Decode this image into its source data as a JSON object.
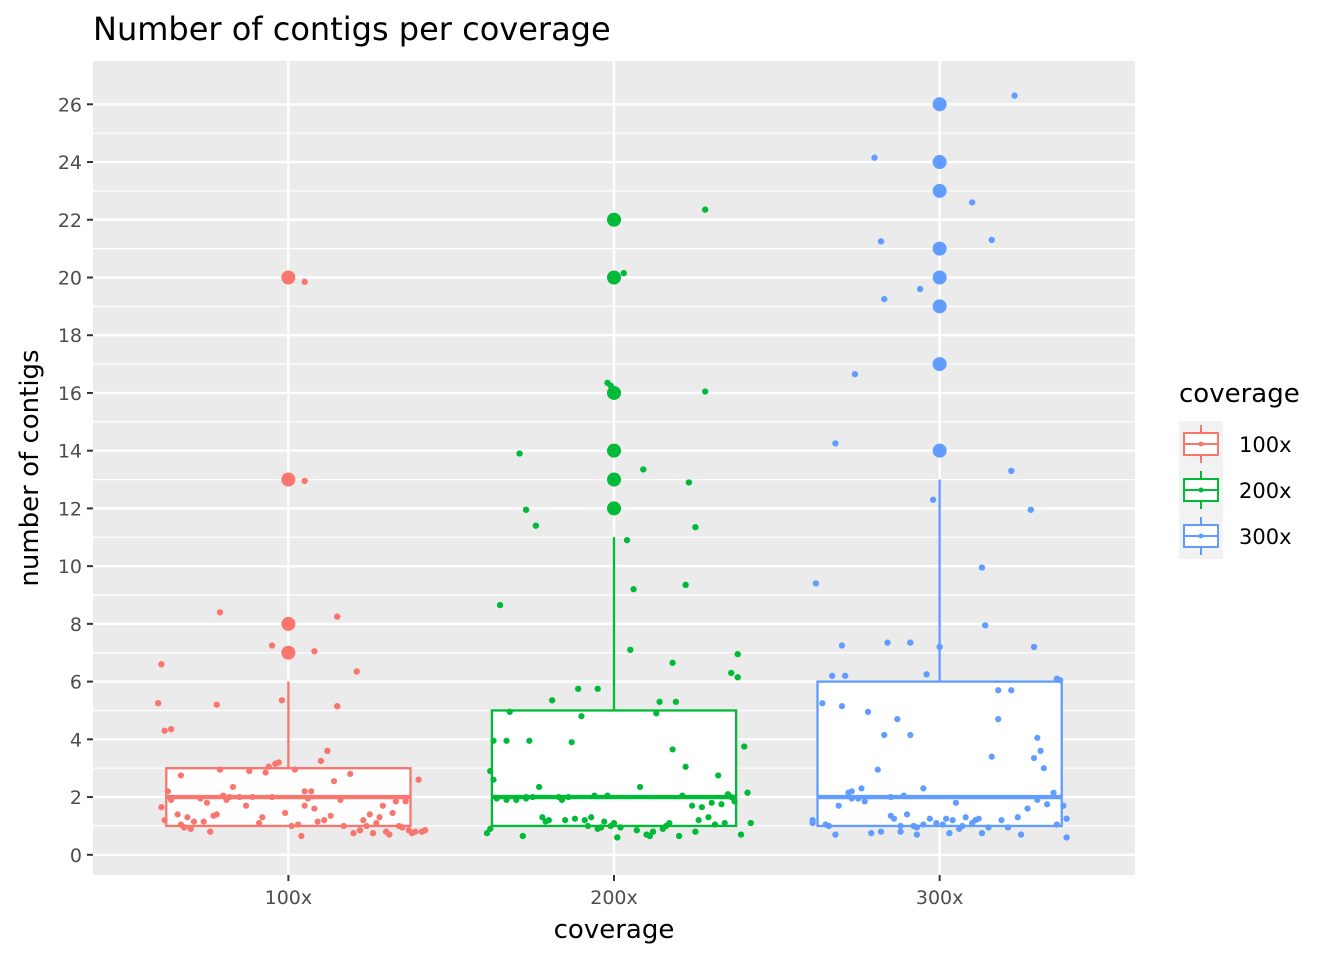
{
  "chart_data": {
    "type": "boxplot",
    "title": "Number of contigs per coverage",
    "xlabel": "coverage",
    "ylabel": "number of contigs",
    "ylim": [
      -0.7,
      27.5
    ],
    "yticks": [
      0,
      2,
      4,
      6,
      8,
      10,
      12,
      14,
      16,
      18,
      20,
      22,
      24,
      26
    ],
    "grid": true,
    "background": "#EBEBEB",
    "legend": {
      "title": "coverage",
      "position": "right",
      "entries": [
        "100x",
        "200x",
        "300x"
      ]
    },
    "categories": [
      "100x",
      "200x",
      "300x"
    ],
    "series": [
      {
        "name": "100x",
        "color": "#F8766D",
        "box": {
          "min": 1,
          "q1": 1,
          "median": 2,
          "q3": 3,
          "whisker_high": 6
        },
        "outliers": [
          7,
          8,
          13,
          20
        ],
        "jitter": [
          [
            -0.39,
            6.6
          ],
          [
            -0.4,
            5.25
          ],
          [
            -0.38,
            4.3
          ],
          [
            -0.36,
            4.35
          ],
          [
            -0.22,
            5.2
          ],
          [
            -0.21,
            8.4
          ],
          [
            -0.39,
            1.65
          ],
          [
            -0.38,
            1.2
          ],
          [
            -0.37,
            2.2
          ],
          [
            -0.36,
            1.9
          ],
          [
            -0.34,
            1.4
          ],
          [
            -0.33,
            1.05
          ],
          [
            -0.33,
            2.75
          ],
          [
            -0.32,
            0.95
          ],
          [
            -0.31,
            1.3
          ],
          [
            -0.3,
            0.9
          ],
          [
            -0.29,
            1.15
          ],
          [
            -0.27,
            1.95
          ],
          [
            -0.26,
            1.15
          ],
          [
            -0.25,
            1.8
          ],
          [
            -0.24,
            0.8
          ],
          [
            -0.23,
            1.35
          ],
          [
            -0.22,
            1.4
          ],
          [
            -0.21,
            2.95
          ],
          [
            -0.2,
            2.05
          ],
          [
            -0.19,
            1.9
          ],
          [
            -0.18,
            2.0
          ],
          [
            -0.17,
            2.35
          ],
          [
            -0.15,
            2.0
          ],
          [
            -0.13,
            1.7
          ],
          [
            -0.12,
            2.9
          ],
          [
            -0.11,
            2.0
          ],
          [
            -0.09,
            1.1
          ],
          [
            -0.08,
            1.3
          ],
          [
            -0.07,
            2.85
          ],
          [
            -0.06,
            3.05
          ],
          [
            -0.05,
            2.0
          ],
          [
            -0.04,
            3.15
          ],
          [
            -0.03,
            3.2
          ],
          [
            -0.02,
            5.35
          ],
          [
            -0.01,
            1.45
          ],
          [
            0.01,
            1.0
          ],
          [
            0.02,
            2.95
          ],
          [
            0.03,
            1.05
          ],
          [
            0.04,
            0.65
          ],
          [
            0.05,
            2.2
          ],
          [
            0.06,
            1.95
          ],
          [
            0.07,
            2.2
          ],
          [
            0.08,
            1.6
          ],
          [
            0.09,
            1.15
          ],
          [
            0.1,
            3.25
          ],
          [
            0.11,
            1.2
          ],
          [
            0.12,
            3.6
          ],
          [
            0.13,
            1.35
          ],
          [
            0.14,
            2.55
          ],
          [
            0.15,
            5.15
          ],
          [
            0.16,
            1.9
          ],
          [
            0.17,
            1.0
          ],
          [
            0.19,
            2.8
          ],
          [
            0.2,
            0.75
          ],
          [
            0.21,
            6.35
          ],
          [
            0.22,
            0.85
          ],
          [
            0.23,
            1.2
          ],
          [
            0.24,
            1.0
          ],
          [
            0.25,
            1.4
          ],
          [
            0.26,
            0.75
          ],
          [
            0.27,
            1.1
          ],
          [
            0.28,
            1.3
          ],
          [
            0.29,
            1.7
          ],
          [
            0.3,
            0.8
          ],
          [
            0.31,
            0.7
          ],
          [
            0.32,
            1.45
          ],
          [
            0.33,
            1.85
          ],
          [
            0.34,
            1.0
          ],
          [
            0.35,
            0.95
          ],
          [
            0.36,
            1.85
          ],
          [
            0.37,
            0.85
          ],
          [
            0.38,
            0.75
          ],
          [
            0.39,
            0.8
          ],
          [
            0.4,
            2.6
          ],
          [
            0.41,
            0.8
          ],
          [
            0.42,
            0.85
          ],
          [
            0.05,
            19.85
          ],
          [
            0.05,
            12.95
          ],
          [
            0.08,
            7.05
          ],
          [
            -0.05,
            7.25
          ],
          [
            0.15,
            8.25
          ],
          [
            0.05,
            1.7
          ]
        ]
      },
      {
        "name": "200x",
        "color": "#00BA38",
        "box": {
          "min": 1,
          "q1": 1,
          "median": 2,
          "q3": 5,
          "whisker_high": 11
        },
        "outliers": [
          12,
          13,
          14,
          16,
          20,
          22
        ],
        "jitter": [
          [
            -0.39,
            0.75
          ],
          [
            -0.38,
            0.9
          ],
          [
            -0.38,
            2.9
          ],
          [
            -0.37,
            2.6
          ],
          [
            -0.37,
            3.95
          ],
          [
            -0.36,
            1.95
          ],
          [
            -0.35,
            8.65
          ],
          [
            -0.33,
            1.9
          ],
          [
            -0.33,
            3.95
          ],
          [
            -0.32,
            4.95
          ],
          [
            -0.3,
            1.9
          ],
          [
            -0.29,
            13.9
          ],
          [
            -0.28,
            0.65
          ],
          [
            -0.27,
            1.95
          ],
          [
            -0.27,
            2.0
          ],
          [
            -0.27,
            11.95
          ],
          [
            -0.26,
            3.95
          ],
          [
            -0.25,
            2.0
          ],
          [
            -0.24,
            11.4
          ],
          [
            -0.23,
            2.35
          ],
          [
            -0.22,
            1.3
          ],
          [
            -0.21,
            1.15
          ],
          [
            -0.2,
            1.2
          ],
          [
            -0.19,
            5.35
          ],
          [
            -0.17,
            2.0
          ],
          [
            -0.16,
            1.9
          ],
          [
            -0.15,
            1.2
          ],
          [
            -0.14,
            2.0
          ],
          [
            -0.13,
            3.9
          ],
          [
            -0.12,
            1.25
          ],
          [
            -0.11,
            5.75
          ],
          [
            -0.1,
            4.8
          ],
          [
            -0.09,
            1.2
          ],
          [
            -0.08,
            1.0
          ],
          [
            -0.07,
            1.3
          ],
          [
            -0.06,
            2.05
          ],
          [
            -0.05,
            0.9
          ],
          [
            -0.05,
            5.75
          ],
          [
            -0.04,
            0.95
          ],
          [
            -0.03,
            1.15
          ],
          [
            -0.02,
            2.05
          ],
          [
            -0.01,
            1.0
          ],
          [
            0.0,
            1.1
          ],
          [
            0.01,
            0.6
          ],
          [
            0.02,
            0.95
          ],
          [
            0.03,
            20.15
          ],
          [
            0.04,
            10.9
          ],
          [
            0.05,
            7.1
          ],
          [
            0.06,
            9.2
          ],
          [
            0.07,
            0.85
          ],
          [
            0.08,
            2.35
          ],
          [
            0.09,
            13.35
          ],
          [
            0.1,
            0.7
          ],
          [
            0.11,
            0.65
          ],
          [
            0.12,
            0.8
          ],
          [
            0.13,
            4.9
          ],
          [
            0.14,
            5.3
          ],
          [
            0.15,
            0.9
          ],
          [
            0.16,
            1.0
          ],
          [
            0.17,
            1.1
          ],
          [
            0.18,
            6.65
          ],
          [
            0.18,
            3.65
          ],
          [
            0.19,
            5.3
          ],
          [
            0.2,
            0.65
          ],
          [
            0.21,
            2.05
          ],
          [
            0.22,
            9.35
          ],
          [
            0.22,
            3.05
          ],
          [
            0.23,
            12.9
          ],
          [
            0.24,
            1.7
          ],
          [
            0.25,
            11.35
          ],
          [
            0.25,
            0.8
          ],
          [
            0.26,
            1.2
          ],
          [
            0.27,
            1.65
          ],
          [
            0.28,
            22.35
          ],
          [
            0.28,
            16.05
          ],
          [
            0.29,
            1.3
          ],
          [
            0.3,
            1.8
          ],
          [
            0.31,
            1.05
          ],
          [
            0.32,
            2.75
          ],
          [
            0.33,
            1.75
          ],
          [
            0.34,
            1.1
          ],
          [
            0.35,
            2.1
          ],
          [
            0.36,
            6.3
          ],
          [
            0.36,
            2.0
          ],
          [
            0.37,
            1.85
          ],
          [
            0.38,
            6.15
          ],
          [
            0.38,
            6.95
          ],
          [
            0.39,
            0.7
          ],
          [
            0.4,
            3.75
          ],
          [
            0.41,
            2.15
          ],
          [
            0.42,
            1.1
          ],
          [
            -0.02,
            16.35
          ],
          [
            -0.01,
            16.25
          ]
        ]
      },
      {
        "name": "300x",
        "color": "#619CFF",
        "box": {
          "min": 1,
          "q1": 1,
          "median": 2,
          "q3": 6,
          "whisker_high": 13
        },
        "outliers": [
          14,
          17,
          19,
          20,
          21,
          23,
          24,
          26
        ],
        "jitter": [
          [
            -0.39,
            1.1
          ],
          [
            -0.39,
            1.2
          ],
          [
            -0.38,
            9.4
          ],
          [
            -0.36,
            5.25
          ],
          [
            -0.35,
            1.05
          ],
          [
            -0.34,
            1.0
          ],
          [
            -0.33,
            6.2
          ],
          [
            -0.32,
            0.7
          ],
          [
            -0.32,
            14.25
          ],
          [
            -0.31,
            1.7
          ],
          [
            -0.3,
            7.25
          ],
          [
            -0.3,
            5.15
          ],
          [
            -0.29,
            6.2
          ],
          [
            -0.28,
            2.15
          ],
          [
            -0.27,
            1.95
          ],
          [
            -0.27,
            2.2
          ],
          [
            -0.26,
            16.65
          ],
          [
            -0.25,
            1.95
          ],
          [
            -0.24,
            2.3
          ],
          [
            -0.23,
            1.85
          ],
          [
            -0.22,
            4.95
          ],
          [
            -0.21,
            0.75
          ],
          [
            -0.2,
            24.15
          ],
          [
            -0.19,
            2.95
          ],
          [
            -0.18,
            0.8
          ],
          [
            -0.18,
            21.25
          ],
          [
            -0.17,
            4.15
          ],
          [
            -0.17,
            19.25
          ],
          [
            -0.16,
            7.35
          ],
          [
            -0.15,
            1.35
          ],
          [
            -0.15,
            2.0
          ],
          [
            -0.14,
            1.25
          ],
          [
            -0.13,
            4.7
          ],
          [
            -0.12,
            0.8
          ],
          [
            -0.12,
            1.0
          ],
          [
            -0.11,
            2.05
          ],
          [
            -0.1,
            1.4
          ],
          [
            -0.09,
            7.35
          ],
          [
            -0.09,
            4.15
          ],
          [
            -0.08,
            1.0
          ],
          [
            -0.07,
            0.95
          ],
          [
            -0.07,
            0.7
          ],
          [
            -0.06,
            19.6
          ],
          [
            -0.05,
            1.05
          ],
          [
            -0.05,
            2.3
          ],
          [
            -0.04,
            6.25
          ],
          [
            -0.03,
            1.25
          ],
          [
            -0.02,
            12.3
          ],
          [
            -0.01,
            1.1
          ],
          [
            0.0,
            7.2
          ],
          [
            0.01,
            1.05
          ],
          [
            0.02,
            1.25
          ],
          [
            0.03,
            0.75
          ],
          [
            0.04,
            1.2
          ],
          [
            0.05,
            1.8
          ],
          [
            0.06,
            0.9
          ],
          [
            0.07,
            1.0
          ],
          [
            0.08,
            1.3
          ],
          [
            0.1,
            22.6
          ],
          [
            0.1,
            1.1
          ],
          [
            0.11,
            1.2
          ],
          [
            0.12,
            1.25
          ],
          [
            0.13,
            0.75
          ],
          [
            0.13,
            9.95
          ],
          [
            0.14,
            7.95
          ],
          [
            0.15,
            0.95
          ],
          [
            0.16,
            21.3
          ],
          [
            0.16,
            3.4
          ],
          [
            0.18,
            5.7
          ],
          [
            0.18,
            4.7
          ],
          [
            0.19,
            1.2
          ],
          [
            0.21,
            0.95
          ],
          [
            0.22,
            5.7
          ],
          [
            0.22,
            13.3
          ],
          [
            0.23,
            26.3
          ],
          [
            0.24,
            1.3
          ],
          [
            0.25,
            0.7
          ],
          [
            0.27,
            1.6
          ],
          [
            0.28,
            11.95
          ],
          [
            0.29,
            7.2
          ],
          [
            0.29,
            3.35
          ],
          [
            0.3,
            1.9
          ],
          [
            0.3,
            4.05
          ],
          [
            0.31,
            3.6
          ],
          [
            0.32,
            3.0
          ],
          [
            0.33,
            1.75
          ],
          [
            0.35,
            2.15
          ],
          [
            0.36,
            1.05
          ],
          [
            0.36,
            6.1
          ],
          [
            0.37,
            6.05
          ],
          [
            0.38,
            1.7
          ],
          [
            0.39,
            1.25
          ],
          [
            0.39,
            0.6
          ]
        ]
      }
    ]
  }
}
